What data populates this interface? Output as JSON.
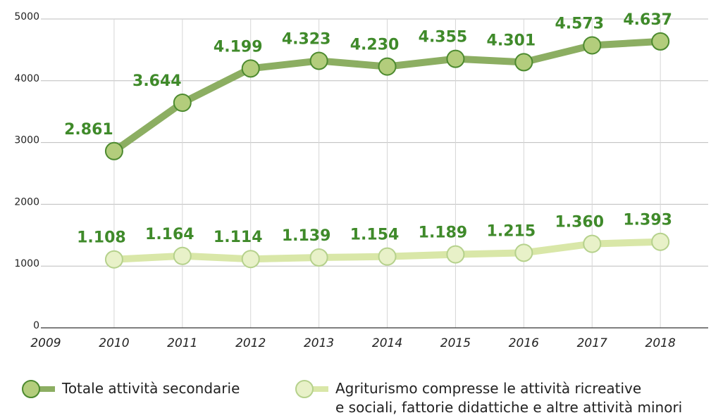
{
  "chart_data": {
    "type": "line",
    "x": [
      2010,
      2011,
      2012,
      2013,
      2014,
      2015,
      2016,
      2017,
      2018
    ],
    "series": [
      {
        "name": "Totale attività secondarie",
        "color": "#8cae62",
        "marker_color": "#b3cd7c",
        "marker_edge": "#4c8a2f",
        "label_color": "#3f8a2a",
        "values": [
          2861,
          3644,
          4199,
          4323,
          4230,
          4355,
          4301,
          4573,
          4637
        ],
        "value_labels": [
          "2.861",
          "3.644",
          "4.199",
          "4.323",
          "4.230",
          "4.355",
          "4.301",
          "4.573",
          "4.637"
        ]
      },
      {
        "name": "Agriturismo compresse le attività ricreative\ne sociali, fattorie didattiche e altre attività minori",
        "color": "#d9e7a8",
        "marker_color": "#e8f1c8",
        "marker_edge": "#b5d18c",
        "label_color": "#3f8a2a",
        "values": [
          1108,
          1164,
          1114,
          1139,
          1154,
          1189,
          1215,
          1360,
          1393
        ],
        "value_labels": [
          "1.108",
          "1.164",
          "1.114",
          "1.139",
          "1.154",
          "1.189",
          "1.215",
          "1.360",
          "1.393"
        ]
      }
    ],
    "xlim": [
      2009,
      2018.7
    ],
    "xticks": [
      2009,
      2010,
      2011,
      2012,
      2013,
      2014,
      2015,
      2016,
      2017,
      2018
    ],
    "ylim": [
      0,
      5000
    ],
    "yticks": [
      0,
      1000,
      2000,
      3000,
      4000,
      5000
    ],
    "grid": true
  }
}
